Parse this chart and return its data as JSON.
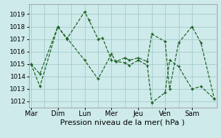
{
  "xlabel": "Pression niveau de la mer( hPa )",
  "background_color": "#ceeaea",
  "grid_color": "#a8cece",
  "line_color": "#1a6020",
  "ylim": [
    1011.5,
    1019.8
  ],
  "yticks": [
    1012,
    1013,
    1014,
    1015,
    1016,
    1017,
    1018,
    1019
  ],
  "days": [
    "Mar",
    "Dim",
    "Lun",
    "Mer",
    "Jeu",
    "Ven",
    "Sam"
  ],
  "day_positions": [
    0,
    6,
    12,
    18,
    24,
    30,
    36
  ],
  "xlim": [
    -0.5,
    41.5
  ],
  "line1_x": [
    0,
    2,
    6,
    8,
    12,
    13,
    15,
    16,
    18,
    19,
    21,
    22,
    24,
    26,
    27,
    30,
    31,
    33,
    36,
    38,
    41
  ],
  "line1_y": [
    1015.0,
    1013.2,
    1018.0,
    1017.0,
    1019.2,
    1018.5,
    1017.0,
    1017.1,
    1015.3,
    1015.2,
    1015.1,
    1014.9,
    1015.3,
    1014.9,
    1011.9,
    1012.7,
    1015.3,
    1014.8,
    1013.0,
    1013.2,
    1012.2
  ],
  "line2_x": [
    0,
    2,
    6,
    8,
    12,
    15,
    18,
    19,
    21,
    22,
    24,
    26,
    27,
    30,
    31,
    33,
    36,
    38,
    41
  ],
  "line2_y": [
    1015.0,
    1014.2,
    1018.0,
    1017.1,
    1015.3,
    1013.8,
    1015.8,
    1015.2,
    1015.5,
    1015.3,
    1015.5,
    1015.2,
    1017.4,
    1016.8,
    1013.0,
    1016.7,
    1018.0,
    1016.7,
    1012.2
  ],
  "font_size_xlabel": 8,
  "font_size_yticks": 6.5,
  "font_size_xticks": 7
}
